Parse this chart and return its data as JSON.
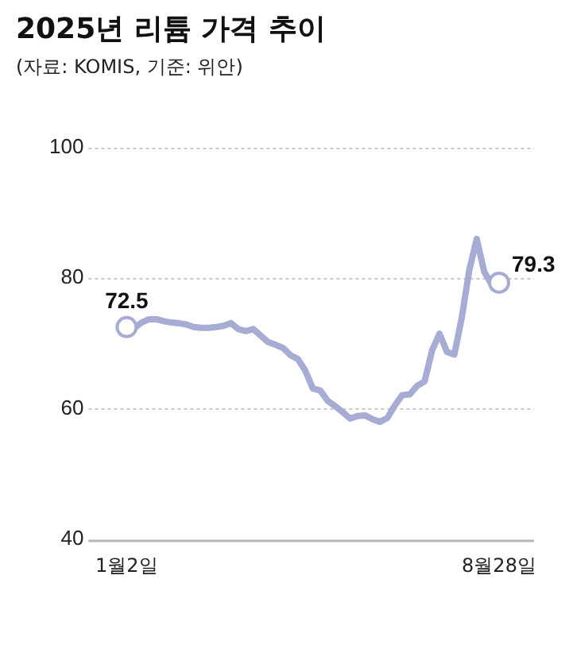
{
  "chart_data": {
    "type": "line",
    "title": "2025년 리튬 가격 추이",
    "subtitle": "(자료: KOMIS, 기준: 위안)",
    "categories": [
      "1월2일",
      null,
      null,
      null,
      null,
      null,
      null,
      null,
      null,
      null,
      null,
      null,
      null,
      null,
      null,
      null,
      null,
      null,
      null,
      null,
      null,
      null,
      null,
      null,
      null,
      null,
      null,
      null,
      null,
      null,
      null,
      null,
      null,
      null,
      null,
      null,
      null,
      null,
      null,
      null,
      null,
      null,
      null,
      null,
      null,
      null,
      null,
      null,
      null,
      null,
      "8월28일"
    ],
    "series": [
      {
        "color": "#a7acd4",
        "values": [
          72.5,
          72.3,
          73.2,
          73.7,
          73.7,
          73.4,
          73.2,
          73.1,
          72.9,
          72.5,
          72.4,
          72.4,
          72.5,
          72.7,
          73.1,
          72.2,
          71.9,
          72.2,
          71.2,
          70.2,
          69.8,
          69.3,
          68.2,
          67.6,
          65.8,
          63.1,
          62.8,
          61.2,
          60.4,
          59.5,
          58.5,
          58.9,
          59.0,
          58.4,
          58.0,
          58.6,
          60.5,
          62.1,
          62.2,
          63.5,
          64.2,
          68.9,
          71.5,
          68.7,
          68.3,
          74,
          81.2,
          86,
          81,
          79.0,
          79.3
        ],
        "value_labels": [
          "72.5",
          null,
          null,
          null,
          null,
          null,
          null,
          null,
          null,
          null,
          null,
          null,
          null,
          null,
          null,
          null,
          null,
          null,
          null,
          null,
          null,
          null,
          null,
          null,
          null,
          null,
          null,
          null,
          null,
          null,
          null,
          null,
          null,
          null,
          null,
          null,
          null,
          null,
          null,
          null,
          null,
          null,
          null,
          null,
          null,
          null,
          null,
          null,
          null,
          null,
          "79.3"
        ]
      }
    ],
    "ylim": [
      40,
      100
    ],
    "yticks": [
      40,
      60,
      80,
      100
    ],
    "grid": "y",
    "line_style": "solid"
  }
}
